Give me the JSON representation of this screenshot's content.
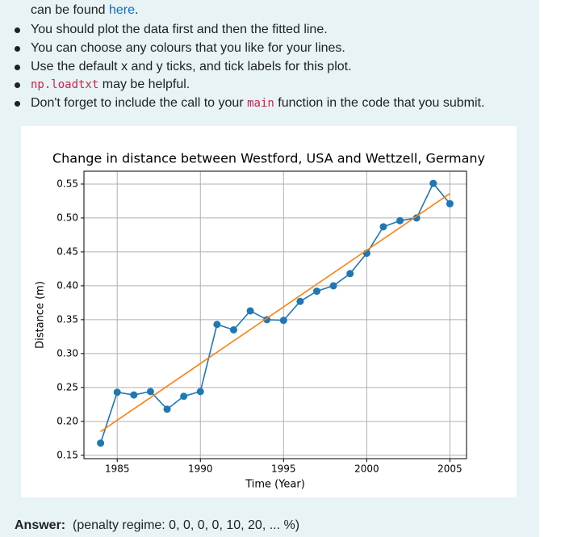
{
  "question": {
    "intro": {
      "before": "can be found ",
      "link": "here",
      "after": "."
    },
    "bullets": [
      {
        "text": "You should plot the data first and then the fitted line."
      },
      {
        "text": "You can choose any colours that you like for your lines."
      },
      {
        "text": "Use the default x and y ticks, and tick labels for this plot."
      },
      {
        "code": "np.loadtxt",
        "after": " may be helpful."
      },
      {
        "before": "Don't forget to include the call to your ",
        "code": "main",
        "after": " function in the code that you submit."
      }
    ],
    "answer": {
      "label": "Answer:",
      "text": "(penalty regime: 0, 0, 0, 0, 10, 20, ... %)"
    }
  },
  "chart_data": {
    "type": "line",
    "title": "Change in distance between Westford, USA and Wettzell, Germany",
    "x_label": "Time (Year)",
    "y_label": "Distance (m)",
    "series": [
      {
        "color": "#1f77b4",
        "markers": true,
        "x": [
          1984,
          1985,
          1986,
          1987,
          1988,
          1989,
          1990,
          1991,
          1992,
          1993,
          1994,
          1995,
          1996,
          1997,
          1998,
          1999,
          2000,
          2001,
          2002,
          2003,
          2004,
          2005
        ],
        "values": [
          0.168,
          0.243,
          0.239,
          0.244,
          0.218,
          0.237,
          0.244,
          0.343,
          0.335,
          0.363,
          0.35,
          0.349,
          0.377,
          0.392,
          0.4,
          0.418,
          0.448,
          0.487,
          0.496,
          0.5,
          0.551,
          0.521
        ]
      },
      {
        "color": "#ff7f0e",
        "markers": false,
        "x": [
          1984,
          2005
        ],
        "values": [
          0.185,
          0.536
        ]
      }
    ],
    "xlim": [
      1983.0,
      2006.0
    ],
    "xticks": [
      1985,
      1990,
      1995,
      2000,
      2005
    ],
    "ylim": [
      0.145,
      0.569
    ],
    "yticks": [
      0.15,
      {
        "value": 0.2,
        "label": "0.20"
      },
      0.25,
      {
        "value": 0.3,
        "label": "0.30"
      },
      0.35,
      {
        "value": 0.4,
        "label": "0.40"
      },
      0.45,
      {
        "value": 0.5,
        "label": "0.50"
      },
      0.55
    ],
    "grid": true
  }
}
